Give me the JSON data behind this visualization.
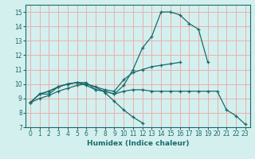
{
  "title": "",
  "xlabel": "Humidex (Indice chaleur)",
  "ylabel": "",
  "bg_color": "#d4f0ee",
  "grid_color": "#e8b0b0",
  "line_color": "#1a6b6b",
  "xlim": [
    -0.5,
    23.5
  ],
  "ylim": [
    7,
    15.5
  ],
  "xticks": [
    0,
    1,
    2,
    3,
    4,
    5,
    6,
    7,
    8,
    9,
    10,
    11,
    12,
    13,
    14,
    15,
    16,
    17,
    18,
    19,
    20,
    21,
    22,
    23
  ],
  "yticks": [
    7,
    8,
    9,
    10,
    11,
    12,
    13,
    14,
    15
  ],
  "lines": [
    {
      "x": [
        0,
        1,
        2,
        3,
        4,
        5,
        6,
        7,
        8,
        9,
        10,
        11,
        12,
        13,
        14,
        15,
        16,
        17,
        18,
        19
      ],
      "y": [
        8.7,
        9.3,
        9.3,
        9.8,
        10.0,
        10.1,
        10.1,
        9.6,
        9.5,
        9.3,
        9.9,
        11.0,
        12.5,
        13.3,
        15.0,
        15.0,
        14.8,
        14.2,
        13.8,
        11.5
      ]
    },
    {
      "x": [
        0,
        1,
        2,
        3,
        4,
        5,
        6,
        7,
        8,
        9,
        10,
        11,
        12,
        13,
        14,
        15,
        16
      ],
      "y": [
        8.7,
        9.3,
        9.5,
        9.8,
        10.0,
        10.1,
        10.0,
        9.8,
        9.6,
        9.5,
        10.3,
        10.8,
        11.0,
        11.2,
        11.3,
        11.4,
        11.5
      ]
    },
    {
      "x": [
        0,
        1,
        2,
        3,
        4,
        5,
        6,
        7,
        8,
        9,
        10,
        11,
        12,
        13,
        14,
        15,
        16,
        17,
        18,
        19,
        20,
        21,
        22,
        23
      ],
      "y": [
        8.7,
        9.3,
        9.5,
        9.8,
        10.0,
        10.1,
        9.9,
        9.6,
        9.5,
        9.3,
        9.5,
        9.6,
        9.6,
        9.5,
        9.5,
        9.5,
        9.5,
        9.5,
        9.5,
        9.5,
        9.5,
        8.2,
        7.8,
        7.2
      ]
    },
    {
      "x": [
        0,
        1,
        2,
        3,
        4,
        5,
        6,
        7,
        8,
        9,
        10,
        11,
        12
      ],
      "y": [
        8.7,
        9.0,
        9.2,
        9.5,
        9.7,
        9.9,
        10.0,
        9.8,
        9.4,
        8.8,
        8.2,
        7.7,
        7.3
      ]
    }
  ]
}
